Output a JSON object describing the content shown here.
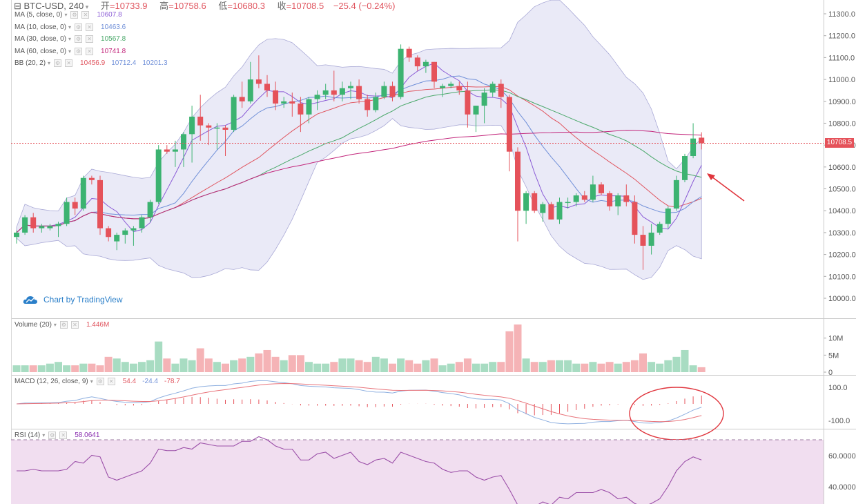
{
  "header": {
    "symbol": "BTC-USD, 240",
    "open_label": "开",
    "open": "=10733.9",
    "high_label": "高",
    "high": "=10758.6",
    "low_label": "低",
    "low": "=10680.3",
    "close_label": "收",
    "close": "=10708.5",
    "change": "−25.4 (−0.24%)"
  },
  "indicators": {
    "ma5": {
      "label": "MA (5, close, 0)",
      "value": "10607.8",
      "color": "#8a5bd6"
    },
    "ma10": {
      "label": "MA (10, close, 0)",
      "value": "10463.6",
      "color": "#6f8fd8"
    },
    "ma30": {
      "label": "MA (30, close, 0)",
      "value": "10567.8",
      "color": "#4aa86a"
    },
    "ma60": {
      "label": "MA (60, close, 0)",
      "value": "10741.8",
      "color": "#c2247a"
    },
    "bb": {
      "label": "BB (20, 2)",
      "v1": "10456.9",
      "v2": "10712.4",
      "v3": "10201.3"
    },
    "volume": {
      "label": "Volume (20)",
      "value": "1.446M"
    },
    "macd": {
      "label": "MACD (12, 26, close, 9)",
      "v1": "54.4",
      "v2": "-24.4",
      "v3": "-78.7"
    },
    "rsi": {
      "label": "RSI (14)",
      "value": "58.0641"
    }
  },
  "brand": "Chart by TradingView",
  "current_price": "10708.5",
  "colors": {
    "up": "#3cb371",
    "down": "#e5525a",
    "band": "#d8d8f0",
    "rsi_band": "#f1def0"
  },
  "chart_data": [
    {
      "type": "candlestick",
      "title": "BTC-USD, 240",
      "ylim": [
        9950,
        11350
      ],
      "yticks": [
        "11300.0",
        "11200.0",
        "11100.0",
        "11000.0",
        "10900.0",
        "10800.0",
        "10700.0",
        "10600.0",
        "10500.0",
        "10400.0",
        "10300.0",
        "10200.0",
        "10100.0",
        "10000.0"
      ],
      "candles": [
        {
          "o": 10280,
          "h": 10310,
          "l": 10250,
          "c": 10300
        },
        {
          "o": 10300,
          "h": 10380,
          "l": 10290,
          "c": 10370
        },
        {
          "o": 10370,
          "h": 10390,
          "l": 10300,
          "c": 10320
        },
        {
          "o": 10320,
          "h": 10340,
          "l": 10300,
          "c": 10330
        },
        {
          "o": 10320,
          "h": 10340,
          "l": 10310,
          "c": 10330
        },
        {
          "o": 10330,
          "h": 10350,
          "l": 10280,
          "c": 10340
        },
        {
          "o": 10340,
          "h": 10460,
          "l": 10330,
          "c": 10440
        },
        {
          "o": 10440,
          "h": 10460,
          "l": 10380,
          "c": 10410
        },
        {
          "o": 10410,
          "h": 10560,
          "l": 10400,
          "c": 10550
        },
        {
          "o": 10550,
          "h": 10560,
          "l": 10520,
          "c": 10540
        },
        {
          "o": 10540,
          "h": 10560,
          "l": 10290,
          "c": 10320
        },
        {
          "o": 10320,
          "h": 10330,
          "l": 10260,
          "c": 10280
        },
        {
          "o": 10260,
          "h": 10300,
          "l": 10220,
          "c": 10290
        },
        {
          "o": 10290,
          "h": 10320,
          "l": 10250,
          "c": 10310
        },
        {
          "o": 10310,
          "h": 10330,
          "l": 10240,
          "c": 10320
        },
        {
          "o": 10320,
          "h": 10380,
          "l": 10300,
          "c": 10370
        },
        {
          "o": 10370,
          "h": 10450,
          "l": 10350,
          "c": 10440
        },
        {
          "o": 10440,
          "h": 10700,
          "l": 10430,
          "c": 10680
        },
        {
          "o": 10680,
          "h": 10700,
          "l": 10660,
          "c": 10670
        },
        {
          "o": 10670,
          "h": 10720,
          "l": 10600,
          "c": 10680
        },
        {
          "o": 10680,
          "h": 10760,
          "l": 10600,
          "c": 10750
        },
        {
          "o": 10750,
          "h": 10880,
          "l": 10620,
          "c": 10830
        },
        {
          "o": 10830,
          "h": 10930,
          "l": 10720,
          "c": 10790
        },
        {
          "o": 10790,
          "h": 10800,
          "l": 10700,
          "c": 10780
        },
        {
          "o": 10780,
          "h": 10800,
          "l": 10680,
          "c": 10780
        },
        {
          "o": 10780,
          "h": 10790,
          "l": 10650,
          "c": 10770
        },
        {
          "o": 10770,
          "h": 10930,
          "l": 10760,
          "c": 10920
        },
        {
          "o": 10920,
          "h": 10990,
          "l": 10870,
          "c": 10900
        },
        {
          "o": 10900,
          "h": 11080,
          "l": 10890,
          "c": 11000
        },
        {
          "o": 11000,
          "h": 11110,
          "l": 10960,
          "c": 10980
        },
        {
          "o": 10980,
          "h": 11020,
          "l": 10920,
          "c": 10950
        },
        {
          "o": 10950,
          "h": 10990,
          "l": 10860,
          "c": 10890
        },
        {
          "o": 10890,
          "h": 10920,
          "l": 10870,
          "c": 10900
        },
        {
          "o": 10900,
          "h": 10940,
          "l": 10830,
          "c": 10890
        },
        {
          "o": 10890,
          "h": 10920,
          "l": 10760,
          "c": 10840
        },
        {
          "o": 10840,
          "h": 10920,
          "l": 10800,
          "c": 10910
        },
        {
          "o": 10910,
          "h": 10950,
          "l": 10860,
          "c": 10930
        },
        {
          "o": 10930,
          "h": 10980,
          "l": 10910,
          "c": 10950
        },
        {
          "o": 10950,
          "h": 11040,
          "l": 10900,
          "c": 10930
        },
        {
          "o": 10930,
          "h": 10990,
          "l": 10900,
          "c": 10960
        },
        {
          "o": 10960,
          "h": 10990,
          "l": 10910,
          "c": 10970
        },
        {
          "o": 10970,
          "h": 11000,
          "l": 10890,
          "c": 10910
        },
        {
          "o": 10910,
          "h": 10930,
          "l": 10830,
          "c": 10860
        },
        {
          "o": 10860,
          "h": 10940,
          "l": 10850,
          "c": 10920
        },
        {
          "o": 10920,
          "h": 10990,
          "l": 10910,
          "c": 10970
        },
        {
          "o": 10970,
          "h": 10990,
          "l": 10900,
          "c": 10920
        },
        {
          "o": 10920,
          "h": 11160,
          "l": 10910,
          "c": 11140
        },
        {
          "o": 11140,
          "h": 11150,
          "l": 11080,
          "c": 11100
        },
        {
          "o": 11100,
          "h": 11110,
          "l": 11040,
          "c": 11060
        },
        {
          "o": 11060,
          "h": 11090,
          "l": 11030,
          "c": 11080
        },
        {
          "o": 11080,
          "h": 11080,
          "l": 10960,
          "c": 10990
        },
        {
          "o": 10960,
          "h": 10980,
          "l": 10920,
          "c": 10970
        },
        {
          "o": 10970,
          "h": 10990,
          "l": 10960,
          "c": 10980
        },
        {
          "o": 10970,
          "h": 10990,
          "l": 10930,
          "c": 10950
        },
        {
          "o": 10950,
          "h": 10990,
          "l": 10780,
          "c": 10840
        },
        {
          "o": 10840,
          "h": 10880,
          "l": 10760,
          "c": 10880
        },
        {
          "o": 10880,
          "h": 10960,
          "l": 10800,
          "c": 10940
        },
        {
          "o": 10940,
          "h": 10990,
          "l": 10920,
          "c": 10980
        },
        {
          "o": 10980,
          "h": 11000,
          "l": 10870,
          "c": 10920
        },
        {
          "o": 10920,
          "h": 10930,
          "l": 10580,
          "c": 10670
        },
        {
          "o": 10670,
          "h": 10690,
          "l": 10260,
          "c": 10400
        },
        {
          "o": 10400,
          "h": 10490,
          "l": 10340,
          "c": 10480
        },
        {
          "o": 10480,
          "h": 10490,
          "l": 10390,
          "c": 10400
        },
        {
          "o": 10390,
          "h": 10440,
          "l": 10350,
          "c": 10430
        },
        {
          "o": 10430,
          "h": 10440,
          "l": 10360,
          "c": 10360
        },
        {
          "o": 10360,
          "h": 10460,
          "l": 10340,
          "c": 10440
        },
        {
          "o": 10440,
          "h": 10460,
          "l": 10410,
          "c": 10440
        },
        {
          "o": 10440,
          "h": 10480,
          "l": 10420,
          "c": 10470
        },
        {
          "o": 10470,
          "h": 10490,
          "l": 10440,
          "c": 10450
        },
        {
          "o": 10450,
          "h": 10560,
          "l": 10440,
          "c": 10520
        },
        {
          "o": 10520,
          "h": 10530,
          "l": 10470,
          "c": 10480
        },
        {
          "o": 10480,
          "h": 10490,
          "l": 10400,
          "c": 10420
        },
        {
          "o": 10420,
          "h": 10480,
          "l": 10380,
          "c": 10470
        },
        {
          "o": 10470,
          "h": 10520,
          "l": 10420,
          "c": 10440
        },
        {
          "o": 10440,
          "h": 10470,
          "l": 10250,
          "c": 10290
        },
        {
          "o": 10290,
          "h": 10330,
          "l": 10130,
          "c": 10240
        },
        {
          "o": 10240,
          "h": 10340,
          "l": 10200,
          "c": 10300
        },
        {
          "o": 10300,
          "h": 10350,
          "l": 10290,
          "c": 10340
        },
        {
          "o": 10340,
          "h": 10420,
          "l": 10320,
          "c": 10410
        },
        {
          "o": 10410,
          "h": 10560,
          "l": 10400,
          "c": 10540
        },
        {
          "o": 10540,
          "h": 10660,
          "l": 10530,
          "c": 10650
        },
        {
          "o": 10650,
          "h": 10800,
          "l": 10640,
          "c": 10730
        },
        {
          "o": 10733.9,
          "h": 10758.6,
          "l": 10680.3,
          "c": 10708.5
        }
      ]
    },
    {
      "type": "bar",
      "title": "Volume (20)",
      "ylim": [
        0,
        14
      ],
      "yticks": [
        "10M",
        "5M",
        "0"
      ],
      "values": [
        2,
        2,
        2,
        2,
        2.5,
        3,
        2,
        2,
        2.5,
        2.5,
        2,
        4.5,
        4,
        3,
        2.5,
        3,
        3.5,
        9,
        4,
        2.5,
        4,
        3.5,
        7,
        4,
        3,
        2.5,
        3.5,
        4,
        4.5,
        5.5,
        6.5,
        4.5,
        3.5,
        5,
        5,
        3,
        2.5,
        2.5,
        3,
        4,
        4,
        3.5,
        3,
        4.5,
        4,
        2.5,
        4,
        3.5,
        2.5,
        3.5,
        4,
        2,
        2.5,
        3,
        4,
        2.5,
        2.5,
        3,
        3,
        12,
        14,
        4,
        3,
        3,
        3.5,
        3.5,
        3.5,
        2.5,
        2.5,
        3,
        2.5,
        3,
        2.5,
        3,
        3.5,
        5.5,
        3,
        2.5,
        3.5,
        4.5,
        6.5,
        2,
        1.446
      ]
    },
    {
      "type": "line",
      "title": "RSI (14)",
      "ylim": [
        27,
        78
      ],
      "yticks": [
        "60.0000",
        "40.0000"
      ],
      "values": [
        52,
        52,
        53,
        52,
        52,
        52,
        53,
        58,
        57,
        62,
        61,
        48,
        46,
        48,
        50,
        52,
        57,
        66,
        65,
        65,
        67,
        66,
        70,
        69,
        68,
        68,
        68,
        71,
        71,
        74,
        72,
        68,
        66,
        66,
        59,
        59,
        63,
        64,
        60,
        62,
        64,
        58,
        56,
        59,
        60,
        57,
        64,
        62,
        60,
        58,
        57,
        53,
        51,
        52,
        52,
        48,
        46,
        48,
        49,
        40,
        30,
        27,
        29,
        32,
        30,
        35,
        34,
        38,
        38,
        38,
        40,
        38,
        34,
        35,
        31,
        29,
        31,
        34,
        42,
        52,
        58,
        61,
        59
      ]
    }
  ]
}
